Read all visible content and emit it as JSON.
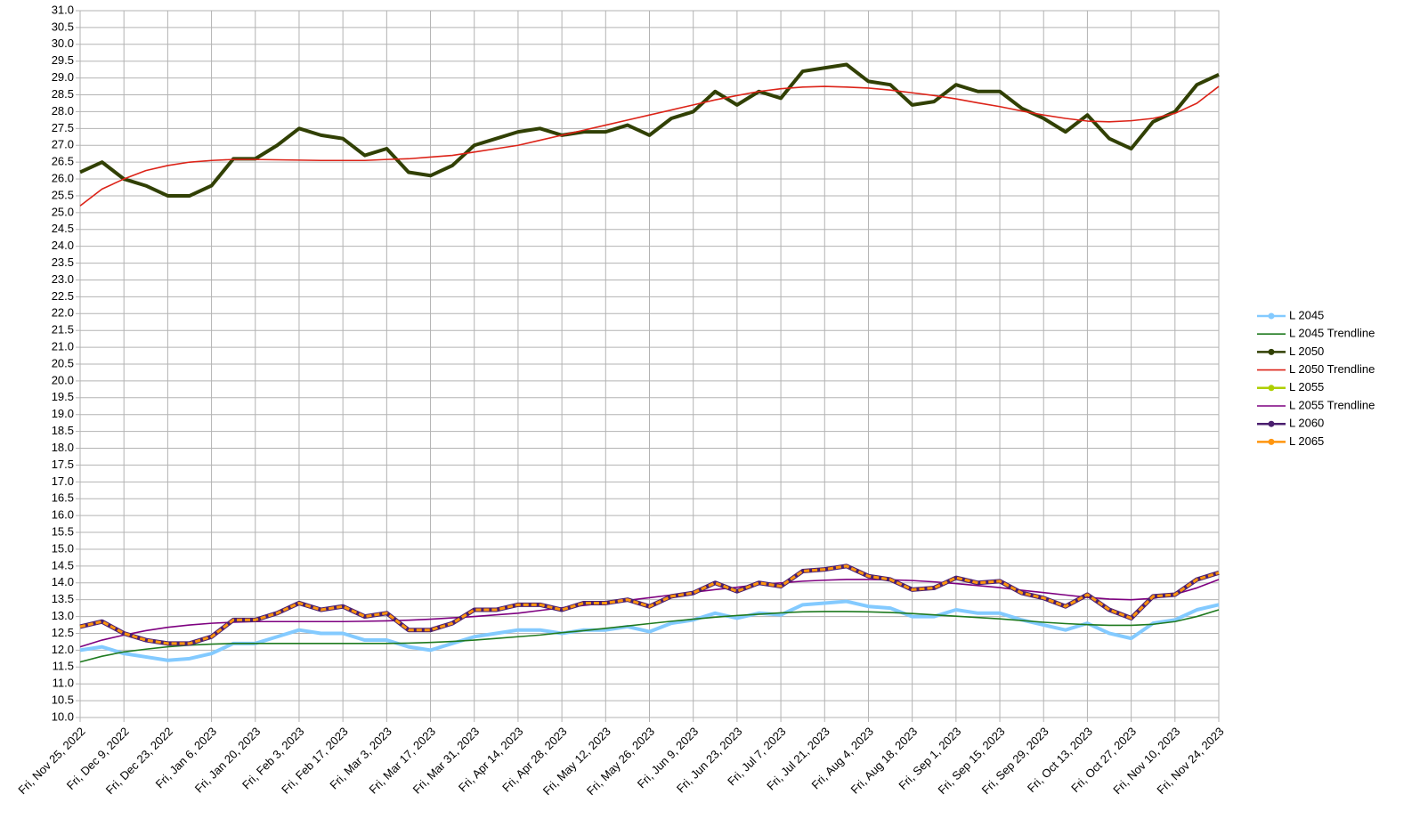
{
  "chart_data": {
    "type": "line",
    "categories": [
      "Fri, Nov 25, 2022",
      null,
      "Fri, Dec 9, 2022",
      null,
      "Fri, Dec 23, 2022",
      null,
      "Fri, Jan 6, 2023",
      null,
      "Fri, Jan 20, 2023",
      null,
      "Fri, Feb 3, 2023",
      null,
      "Fri, Feb 17, 2023",
      null,
      "Fri, Mar 3, 2023",
      null,
      "Fri, Mar 17, 2023",
      null,
      "Fri, Mar 31, 2023",
      null,
      "Fri, Apr 14, 2023",
      null,
      "Fri, Apr 28, 2023",
      null,
      "Fri, May 12, 2023",
      null,
      "Fri, May 26, 2023",
      null,
      "Fri, Jun 9, 2023",
      null,
      "Fri, Jun 23, 2023",
      null,
      "Fri, Jul 7, 2023",
      null,
      "Fri, Jul 21, 2023",
      null,
      "Fri, Aug 4, 2023",
      null,
      "Fri, Aug 18, 2023",
      null,
      "Fri, Sep 1, 2023",
      null,
      "Fri, Sep 15, 2023",
      null,
      "Fri, Sep 29, 2023",
      null,
      "Fri, Oct 13, 2023",
      null,
      "Fri, Oct 27, 2023",
      null,
      "Fri, Nov 10, 2023",
      null,
      "Fri, Nov 24, 2023"
    ],
    "series": [
      {
        "name": "L 2045",
        "color": "#83caff",
        "values": [
          12.0,
          12.1,
          11.9,
          11.8,
          11.7,
          11.75,
          11.9,
          12.2,
          12.2,
          12.4,
          12.6,
          12.5,
          12.5,
          12.3,
          12.3,
          12.1,
          12.0,
          12.2,
          12.4,
          12.5,
          12.6,
          12.6,
          12.5,
          12.6,
          12.6,
          12.7,
          12.55,
          12.8,
          12.9,
          13.1,
          12.95,
          13.1,
          13.05,
          13.35,
          13.4,
          13.45,
          13.3,
          13.25,
          13.0,
          13.0,
          13.2,
          13.1,
          13.1,
          12.9,
          12.75,
          12.6,
          12.8,
          12.5,
          12.35,
          12.8,
          12.9,
          13.2,
          13.35
        ]
      },
      {
        "name": "L 2045 Trendline",
        "color": "#1f7a1f",
        "values": [
          11.65,
          11.82,
          11.95,
          12.03,
          12.1,
          12.15,
          12.18,
          12.2,
          12.2,
          12.2,
          12.2,
          12.2,
          12.2,
          12.2,
          12.2,
          12.21,
          12.23,
          12.26,
          12.3,
          12.35,
          12.4,
          12.45,
          12.52,
          12.58,
          12.65,
          12.72,
          12.79,
          12.86,
          12.92,
          12.98,
          13.03,
          13.07,
          13.11,
          13.14,
          13.15,
          13.15,
          13.14,
          13.12,
          13.09,
          13.05,
          13.01,
          12.97,
          12.93,
          12.88,
          12.83,
          12.79,
          12.76,
          12.74,
          12.74,
          12.77,
          12.85,
          13.0,
          13.2
        ]
      },
      {
        "name": "L 2050",
        "color": "#314004",
        "values": [
          26.2,
          26.5,
          26.0,
          25.8,
          25.5,
          25.5,
          25.8,
          26.6,
          26.6,
          27.0,
          27.5,
          27.3,
          27.2,
          26.7,
          26.9,
          26.2,
          26.1,
          26.4,
          27.0,
          27.2,
          27.4,
          27.5,
          27.3,
          27.4,
          27.4,
          27.6,
          27.3,
          27.8,
          28.0,
          28.6,
          28.2,
          28.6,
          28.4,
          29.2,
          29.3,
          29.4,
          28.9,
          28.8,
          28.2,
          28.3,
          28.8,
          28.6,
          28.6,
          28.1,
          27.8,
          27.4,
          27.9,
          27.2,
          26.9,
          27.7,
          28.0,
          28.8,
          29.1
        ]
      },
      {
        "name": "L 2050 Trendline",
        "color": "#dc2318",
        "values": [
          25.2,
          25.7,
          26.0,
          26.25,
          26.4,
          26.5,
          26.55,
          26.58,
          26.58,
          26.57,
          26.56,
          26.55,
          26.55,
          26.55,
          26.58,
          26.6,
          26.65,
          26.7,
          26.8,
          26.9,
          27.0,
          27.15,
          27.3,
          27.45,
          27.6,
          27.75,
          27.9,
          28.05,
          28.2,
          28.35,
          28.48,
          28.6,
          28.68,
          28.73,
          28.75,
          28.73,
          28.7,
          28.64,
          28.56,
          28.48,
          28.38,
          28.26,
          28.15,
          28.02,
          27.9,
          27.8,
          27.72,
          27.7,
          27.73,
          27.8,
          27.95,
          28.25,
          28.75
        ]
      },
      {
        "name": "L 2055",
        "color": "#aecf00",
        "values": [
          12.7,
          12.85,
          12.5,
          12.3,
          12.2,
          12.2,
          12.4,
          12.9,
          12.9,
          13.1,
          13.4,
          13.2,
          13.3,
          13.0,
          13.1,
          12.6,
          12.6,
          12.8,
          13.2,
          13.2,
          13.35,
          13.35,
          13.2,
          13.4,
          13.4,
          13.5,
          13.3,
          13.6,
          13.7,
          14.0,
          13.75,
          14.0,
          13.9,
          14.35,
          14.4,
          14.5,
          14.2,
          14.1,
          13.8,
          13.85,
          14.15,
          14.0,
          14.05,
          13.7,
          13.55,
          13.3,
          13.65,
          13.2,
          12.95,
          13.6,
          13.65,
          14.1,
          14.3
        ]
      },
      {
        "name": "L 2055 Trendline",
        "color": "#7e0080",
        "values": [
          12.1,
          12.3,
          12.45,
          12.58,
          12.68,
          12.75,
          12.8,
          12.83,
          12.85,
          12.85,
          12.85,
          12.85,
          12.85,
          12.86,
          12.87,
          12.89,
          12.92,
          12.96,
          13.0,
          13.05,
          13.1,
          13.18,
          13.26,
          13.33,
          13.4,
          13.48,
          13.56,
          13.64,
          13.72,
          13.8,
          13.87,
          13.95,
          14.0,
          14.05,
          14.08,
          14.1,
          14.1,
          14.09,
          14.07,
          14.03,
          13.98,
          13.92,
          13.86,
          13.78,
          13.71,
          13.64,
          13.57,
          13.52,
          13.5,
          13.54,
          13.66,
          13.85,
          14.1
        ]
      },
      {
        "name": "L 2060",
        "color": "#4b1f6f",
        "values": [
          12.7,
          12.85,
          12.5,
          12.3,
          12.2,
          12.2,
          12.4,
          12.9,
          12.9,
          13.1,
          13.4,
          13.2,
          13.3,
          13.0,
          13.1,
          12.6,
          12.6,
          12.8,
          13.2,
          13.2,
          13.35,
          13.35,
          13.2,
          13.4,
          13.4,
          13.5,
          13.3,
          13.6,
          13.7,
          14.0,
          13.75,
          14.0,
          13.9,
          14.35,
          14.4,
          14.5,
          14.2,
          14.1,
          13.8,
          13.85,
          14.15,
          14.0,
          14.05,
          13.7,
          13.55,
          13.3,
          13.65,
          13.2,
          12.95,
          13.6,
          13.65,
          14.1,
          14.3
        ]
      },
      {
        "name": "L 2065",
        "color": "#ff950e",
        "values": [
          12.7,
          12.85,
          12.5,
          12.3,
          12.2,
          12.2,
          12.4,
          12.9,
          12.9,
          13.1,
          13.4,
          13.2,
          13.3,
          13.0,
          13.1,
          12.6,
          12.6,
          12.8,
          13.2,
          13.2,
          13.35,
          13.35,
          13.2,
          13.4,
          13.4,
          13.5,
          13.3,
          13.6,
          13.7,
          14.0,
          13.75,
          14.0,
          13.9,
          14.35,
          14.4,
          14.5,
          14.2,
          14.1,
          13.8,
          13.85,
          14.15,
          14.0,
          14.05,
          13.7,
          13.55,
          13.3,
          13.65,
          13.2,
          12.95,
          13.6,
          13.65,
          14.1,
          14.3
        ]
      }
    ],
    "ylim": [
      10,
      31
    ],
    "yticks": [
      {
        "value": 10,
        "label": "10.0"
      },
      10.5,
      {
        "value": 11,
        "label": "11.0"
      },
      11.5,
      {
        "value": 12,
        "label": "12.0"
      },
      12.5,
      {
        "value": 13,
        "label": "13.0"
      },
      13.5,
      {
        "value": 14,
        "label": "14.0"
      },
      14.5,
      {
        "value": 15,
        "label": "15.0"
      },
      15.5,
      {
        "value": 16,
        "label": "16.0"
      },
      16.5,
      {
        "value": 17,
        "label": "17.0"
      },
      17.5,
      {
        "value": 18,
        "label": "18.0"
      },
      18.5,
      {
        "value": 19,
        "label": "19.0"
      },
      19.5,
      {
        "value": 20,
        "label": "20.0"
      },
      20.5,
      {
        "value": 21,
        "label": "21.0"
      },
      21.5,
      {
        "value": 22,
        "label": "22.0"
      },
      22.5,
      {
        "value": 23,
        "label": "23.0"
      },
      23.5,
      {
        "value": 24,
        "label": "24.0"
      },
      24.5,
      {
        "value": 25,
        "label": "25.0"
      },
      25.5,
      {
        "value": 26,
        "label": "26.0"
      },
      26.5,
      {
        "value": 27,
        "label": "27.0"
      },
      27.5,
      {
        "value": 28,
        "label": "28.0"
      },
      28.5,
      {
        "value": 29,
        "label": "29.0"
      },
      29.5,
      {
        "value": 30,
        "label": "30.0"
      },
      30.5,
      {
        "value": 31,
        "label": "31.0"
      }
    ],
    "grid": true,
    "legend": "right"
  }
}
